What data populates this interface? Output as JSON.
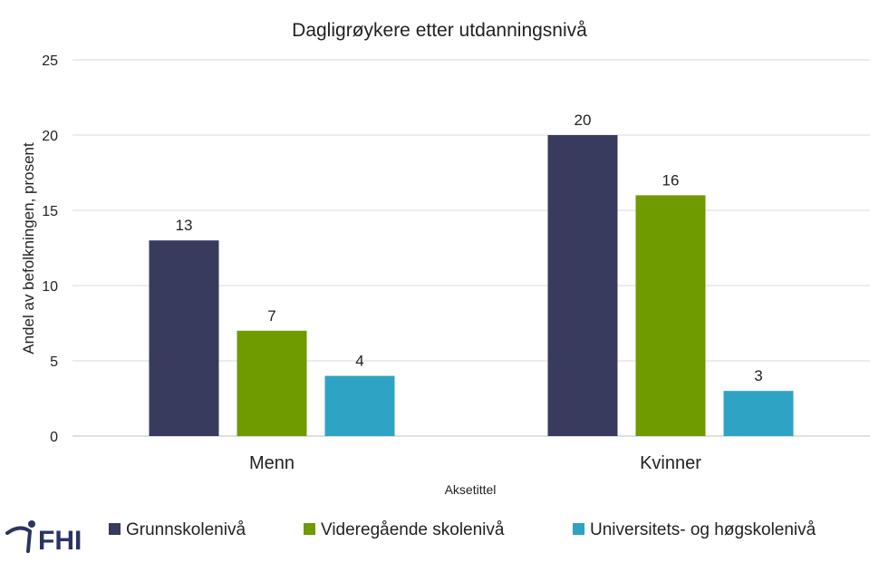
{
  "brand": {
    "logo_text": "FHI",
    "logo_color": "#2a3463"
  },
  "chart_data": {
    "type": "bar",
    "title": "Dagligrøykere etter utdanningsnivå",
    "xlabel": "Aksetittel",
    "ylabel": "Andel av befolkningen, prosent",
    "categories": [
      "Menn",
      "Kvinner"
    ],
    "ylim": [
      0,
      25
    ],
    "yticks": [
      0,
      5,
      10,
      15,
      20,
      25
    ],
    "grid": true,
    "legend_position": "bottom",
    "series": [
      {
        "name": "Grunnskolenivå",
        "values": [
          13,
          20
        ],
        "color": "#383b5e"
      },
      {
        "name": "Videregående skolenivå",
        "values": [
          7,
          16
        ],
        "color": "#6f9a00"
      },
      {
        "name": "Universitets- og høgskolenivå",
        "values": [
          4,
          3
        ],
        "color": "#2fa3c4"
      }
    ]
  }
}
